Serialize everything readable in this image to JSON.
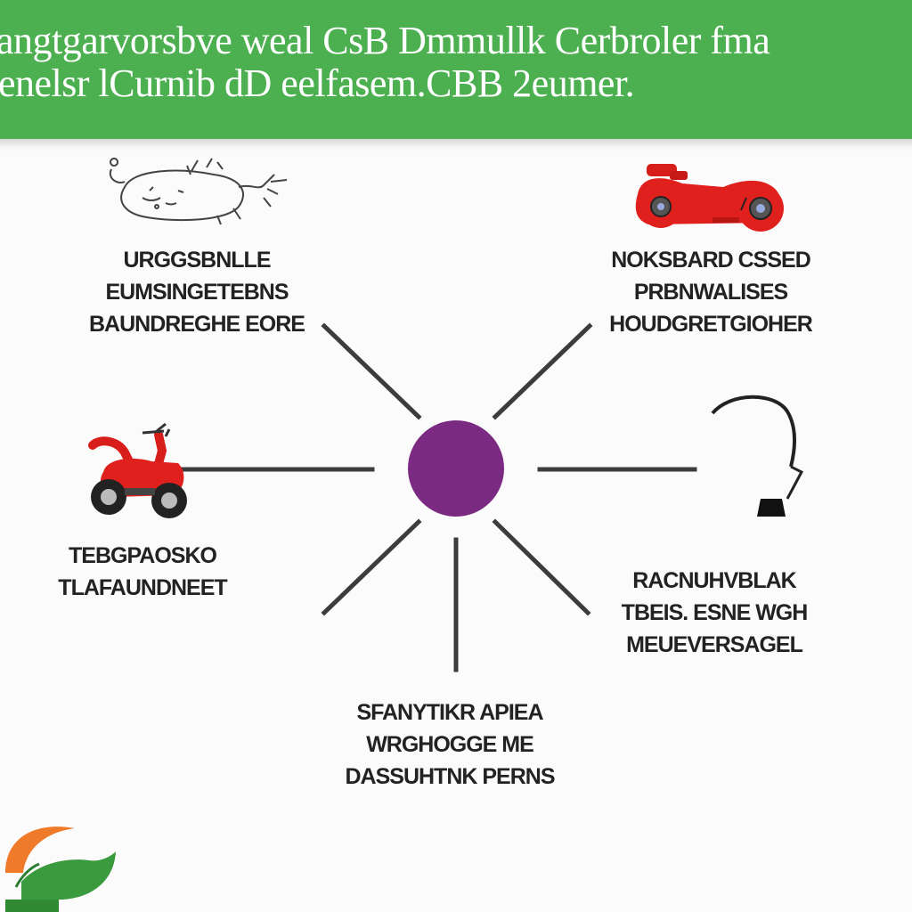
{
  "header": {
    "line1": "angtgarvorsbve weal CsB Dmmullk Cerbroler fma",
    "line2": "enelsr lCurnib dD eelfasem.CBB 2eumer."
  },
  "nodes": [
    {
      "id": "top-left",
      "icon": "sketch-animal-icon",
      "lines": [
        "URGGSBNLLE",
        "EUMSINGETEBNS",
        "BAUNDREGHE EORE"
      ]
    },
    {
      "id": "top-right",
      "icon": "red-motorcycle-icon",
      "lines": [
        "NOKSBARD CSSED",
        "PRBNWALISES",
        "HOUDGRETGIOHER"
      ]
    },
    {
      "id": "left",
      "icon": "red-scooter-icon",
      "lines": [
        "TEBGPAOSKO",
        "TLAFAUNDNEET"
      ]
    },
    {
      "id": "right",
      "icon": "hook-lamp-icon",
      "lines": [
        "RACNUHVBLAK",
        "TBEIS. ESNE WGH",
        "MEUEVERSAGEL"
      ]
    },
    {
      "id": "bottom",
      "icon": "",
      "lines": [
        "SFANYTIKR APIEA",
        "WRGHOGGE ME",
        "DASSUHTNK PERNS"
      ]
    }
  ],
  "hub": {
    "color": "#7b2a82"
  },
  "colors": {
    "header_bg": "#4caf50",
    "spoke": "#3c3c3c",
    "vehicle_red": "#e0201c",
    "logo_orange": "#ef7a2a",
    "logo_green": "#3a9a3e"
  },
  "logo": {
    "icon": "leaf-logo-icon"
  }
}
